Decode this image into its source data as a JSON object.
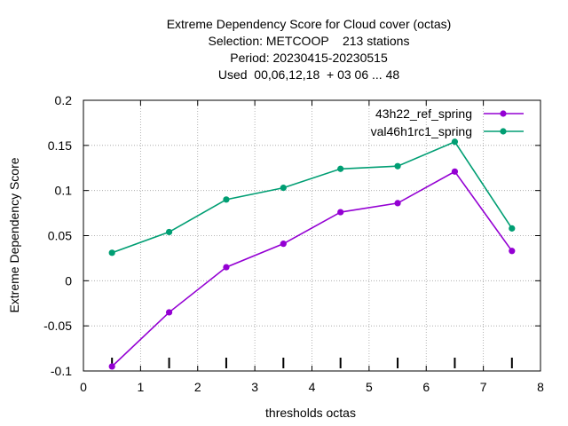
{
  "chart_data": {
    "type": "line",
    "title_lines": [
      "Extreme Dependency Score  for Cloud cover (octas)",
      "Selection: METCOOP    213 stations",
      "Period: 20230415-20230515",
      "Used  00,06,12,18  + 03 06 ... 48"
    ],
    "xlabel": "thresholds octas",
    "ylabel": "Extreme Dependency Score",
    "xlim": [
      0,
      8
    ],
    "ylim": [
      -0.1,
      0.2
    ],
    "x_ticks": [
      0,
      1,
      2,
      3,
      4,
      5,
      6,
      7,
      8
    ],
    "x_tick_labels": [
      "0",
      "1",
      "2",
      "3",
      "4",
      "5",
      "6",
      "7",
      "8"
    ],
    "y_ticks": [
      -0.1,
      -0.05,
      0,
      0.05,
      0.1,
      0.15,
      0.2
    ],
    "y_tick_labels": [
      "-0.1",
      "-0.05",
      "0",
      "0.05",
      "0.1",
      "0.15",
      "0.2"
    ],
    "grid": true,
    "legend_position": "top-right",
    "threshold_markers_x": [
      0.5,
      1.5,
      2.5,
      3.5,
      4.5,
      5.5,
      6.5,
      7.5
    ],
    "series": [
      {
        "name": "43h22_ref_spring",
        "color": "#9400d3",
        "x": [
          0.5,
          1.5,
          2.5,
          3.5,
          4.5,
          5.5,
          6.5,
          7.5
        ],
        "values": [
          -0.095,
          -0.035,
          0.015,
          0.041,
          0.076,
          0.086,
          0.121,
          0.033
        ]
      },
      {
        "name": "val46h1rc1_spring",
        "color": "#009e73",
        "x": [
          0.5,
          1.5,
          2.5,
          3.5,
          4.5,
          5.5,
          6.5,
          7.5
        ],
        "values": [
          0.031,
          0.054,
          0.09,
          0.103,
          0.124,
          0.127,
          0.154,
          0.058
        ]
      }
    ]
  }
}
